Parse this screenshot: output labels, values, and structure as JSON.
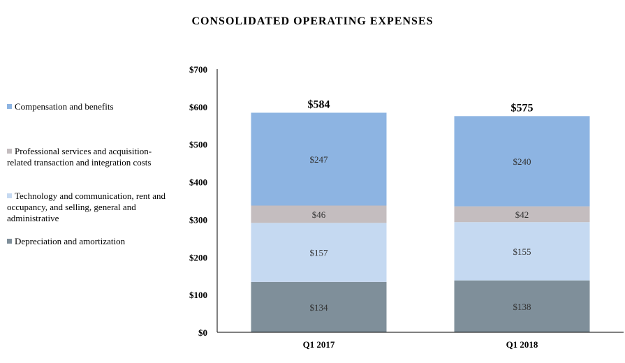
{
  "chart_data": {
    "type": "bar",
    "stacked": true,
    "title": "CONSOLIDATED OPERATING EXPENSES",
    "categories": [
      "Q1 2017",
      "Q1 2018"
    ],
    "series": [
      {
        "name": "Depreciation and amortization",
        "values": [
          134,
          138
        ],
        "labels": [
          "$134",
          "$138"
        ],
        "color": "#7f8f9a"
      },
      {
        "name": "Technology and communication, rent and occupancy, and selling, general and administrative",
        "values": [
          157,
          155
        ],
        "labels": [
          "$157",
          "$155"
        ],
        "color": "#c5d9f1"
      },
      {
        "name": "Professional services and acquisition-related transaction and integration costs",
        "values": [
          46,
          42
        ],
        "labels": [
          "$46",
          "$42"
        ],
        "color": "#c4bdbf"
      },
      {
        "name": "Compensation and benefits",
        "values": [
          247,
          240
        ],
        "labels": [
          "$247",
          "$240"
        ],
        "color": "#8db4e2"
      }
    ],
    "totals": [
      "$584",
      "$575"
    ],
    "total_values": [
      584,
      575
    ],
    "ylim": [
      0,
      700
    ],
    "yticks": [
      "$0",
      "$100",
      "$200",
      "$300",
      "$400",
      "$500",
      "$600",
      "$700"
    ],
    "grid": false,
    "legend_position": "left"
  }
}
